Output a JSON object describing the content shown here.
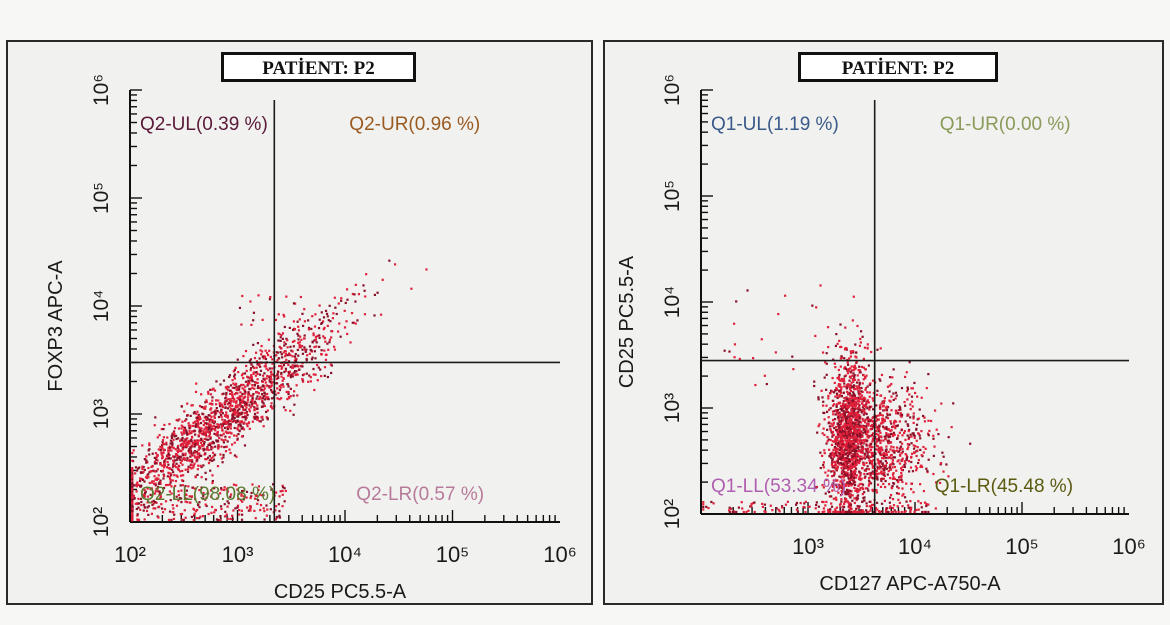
{
  "colors": {
    "dots": "#e0203a",
    "dots_dark": "#8a1028",
    "gate": "#1c1c1c"
  },
  "chart_data": [
    {
      "type": "scatter",
      "title": "PATİENT: P2",
      "xlabel": "CD25 PC5.5-A",
      "ylabel": "FOXP3 APC-A",
      "x_scale": "log",
      "y_scale": "log",
      "xlim": [
        100,
        1000000
      ],
      "ylim": [
        100,
        1000000
      ],
      "x_ticks": [
        "10²",
        "10³",
        "10⁴",
        "10⁵",
        "10⁶"
      ],
      "y_ticks": [
        "10²",
        "10³",
        "10⁴",
        "10⁵",
        "10⁶"
      ],
      "gate": {
        "x": 2200,
        "y": 3000
      },
      "quadrants": [
        {
          "label": "Q2-UL(0.39 %)",
          "color": "#5a1a3a"
        },
        {
          "label": "Q2-UR(0.96 %)",
          "color": "#9a5a20"
        },
        {
          "label": "Q2-LL(98.08 %)",
          "color": "#5a7a30"
        },
        {
          "label": "Q2-LR(0.57 %)",
          "color": "#b87a9a"
        }
      ]
    },
    {
      "type": "scatter",
      "title": "PATİENT: P2",
      "xlabel": "CD127 APC-A750-A",
      "ylabel": "CD25 PC5.5-A",
      "x_scale": "log",
      "y_scale": "log",
      "xlim": [
        100,
        1000000
      ],
      "ylim": [
        100,
        1000000
      ],
      "x_ticks": [
        "10³",
        "10⁴",
        "10⁵",
        "10⁶"
      ],
      "y_ticks": [
        "10²",
        "10³",
        "10⁴",
        "10⁵",
        "10⁶"
      ],
      "gate": {
        "x": 4200,
        "y": 2800
      },
      "quadrants": [
        {
          "label": "Q1-UL(1.19 %)",
          "color": "#3a5a8a"
        },
        {
          "label": "Q1-UR(0.00 %)",
          "color": "#8a9a5a"
        },
        {
          "label": "Q1-LL(53.34 %)",
          "color": "#b060b0"
        },
        {
          "label": "Q1-LR(45.48 %)",
          "color": "#5a5a10"
        }
      ]
    }
  ]
}
